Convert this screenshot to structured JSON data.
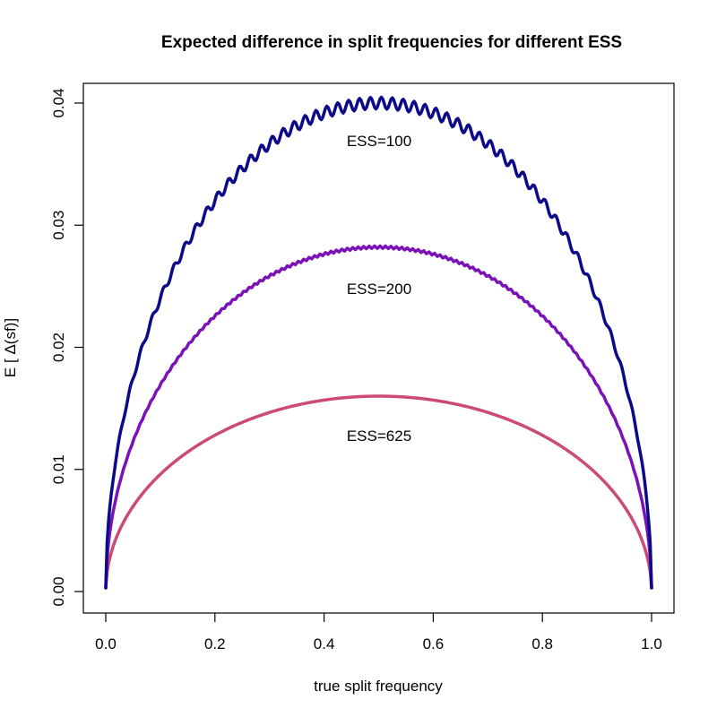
{
  "chart_data": {
    "type": "line",
    "title": "Expected difference in split frequencies for different ESS",
    "xlabel": "true split frequency",
    "ylabel": "E [ Δ(sf)]",
    "xlim": [
      0.0,
      1.0
    ],
    "ylim": [
      0.0,
      0.04
    ],
    "x_ticks": [
      "0.0",
      "0.2",
      "0.4",
      "0.6",
      "0.8",
      "1.0"
    ],
    "y_ticks": [
      "0.00",
      "0.01",
      "0.02",
      "0.03",
      "0.04"
    ],
    "grid": false,
    "legend": "none (inline annotations)",
    "x": [
      0.0,
      0.05,
      0.1,
      0.2,
      0.3,
      0.4,
      0.5,
      0.6,
      0.7,
      0.8,
      0.9,
      0.95,
      1.0
    ],
    "series": [
      {
        "name": "ESS=100",
        "color": "#0d0a8a",
        "values": [
          0.0,
          0.0174,
          0.0239,
          0.0319,
          0.0366,
          0.0391,
          0.0399,
          0.0391,
          0.0366,
          0.0319,
          0.0239,
          0.0174,
          0.0
        ],
        "peak": 0.04
      },
      {
        "name": "ESS=200",
        "color": "#7a12b8",
        "values": [
          0.0,
          0.0123,
          0.0169,
          0.0226,
          0.0259,
          0.0276,
          0.0282,
          0.0276,
          0.0259,
          0.0226,
          0.0169,
          0.0123,
          0.0
        ],
        "peak": 0.0282
      },
      {
        "name": "ESS=625",
        "color": "#cc4a78",
        "values": [
          0.0,
          0.007,
          0.0096,
          0.0128,
          0.0146,
          0.0156,
          0.016,
          0.0156,
          0.0146,
          0.0128,
          0.0096,
          0.007,
          0.0
        ],
        "peak": 0.016
      }
    ],
    "annotations": [
      {
        "text": "ESS=100",
        "x": 0.5,
        "y": 0.037
      },
      {
        "text": "ESS=200",
        "x": 0.5,
        "y": 0.025
      },
      {
        "text": "ESS=625",
        "x": 0.5,
        "y": 0.013
      }
    ]
  }
}
